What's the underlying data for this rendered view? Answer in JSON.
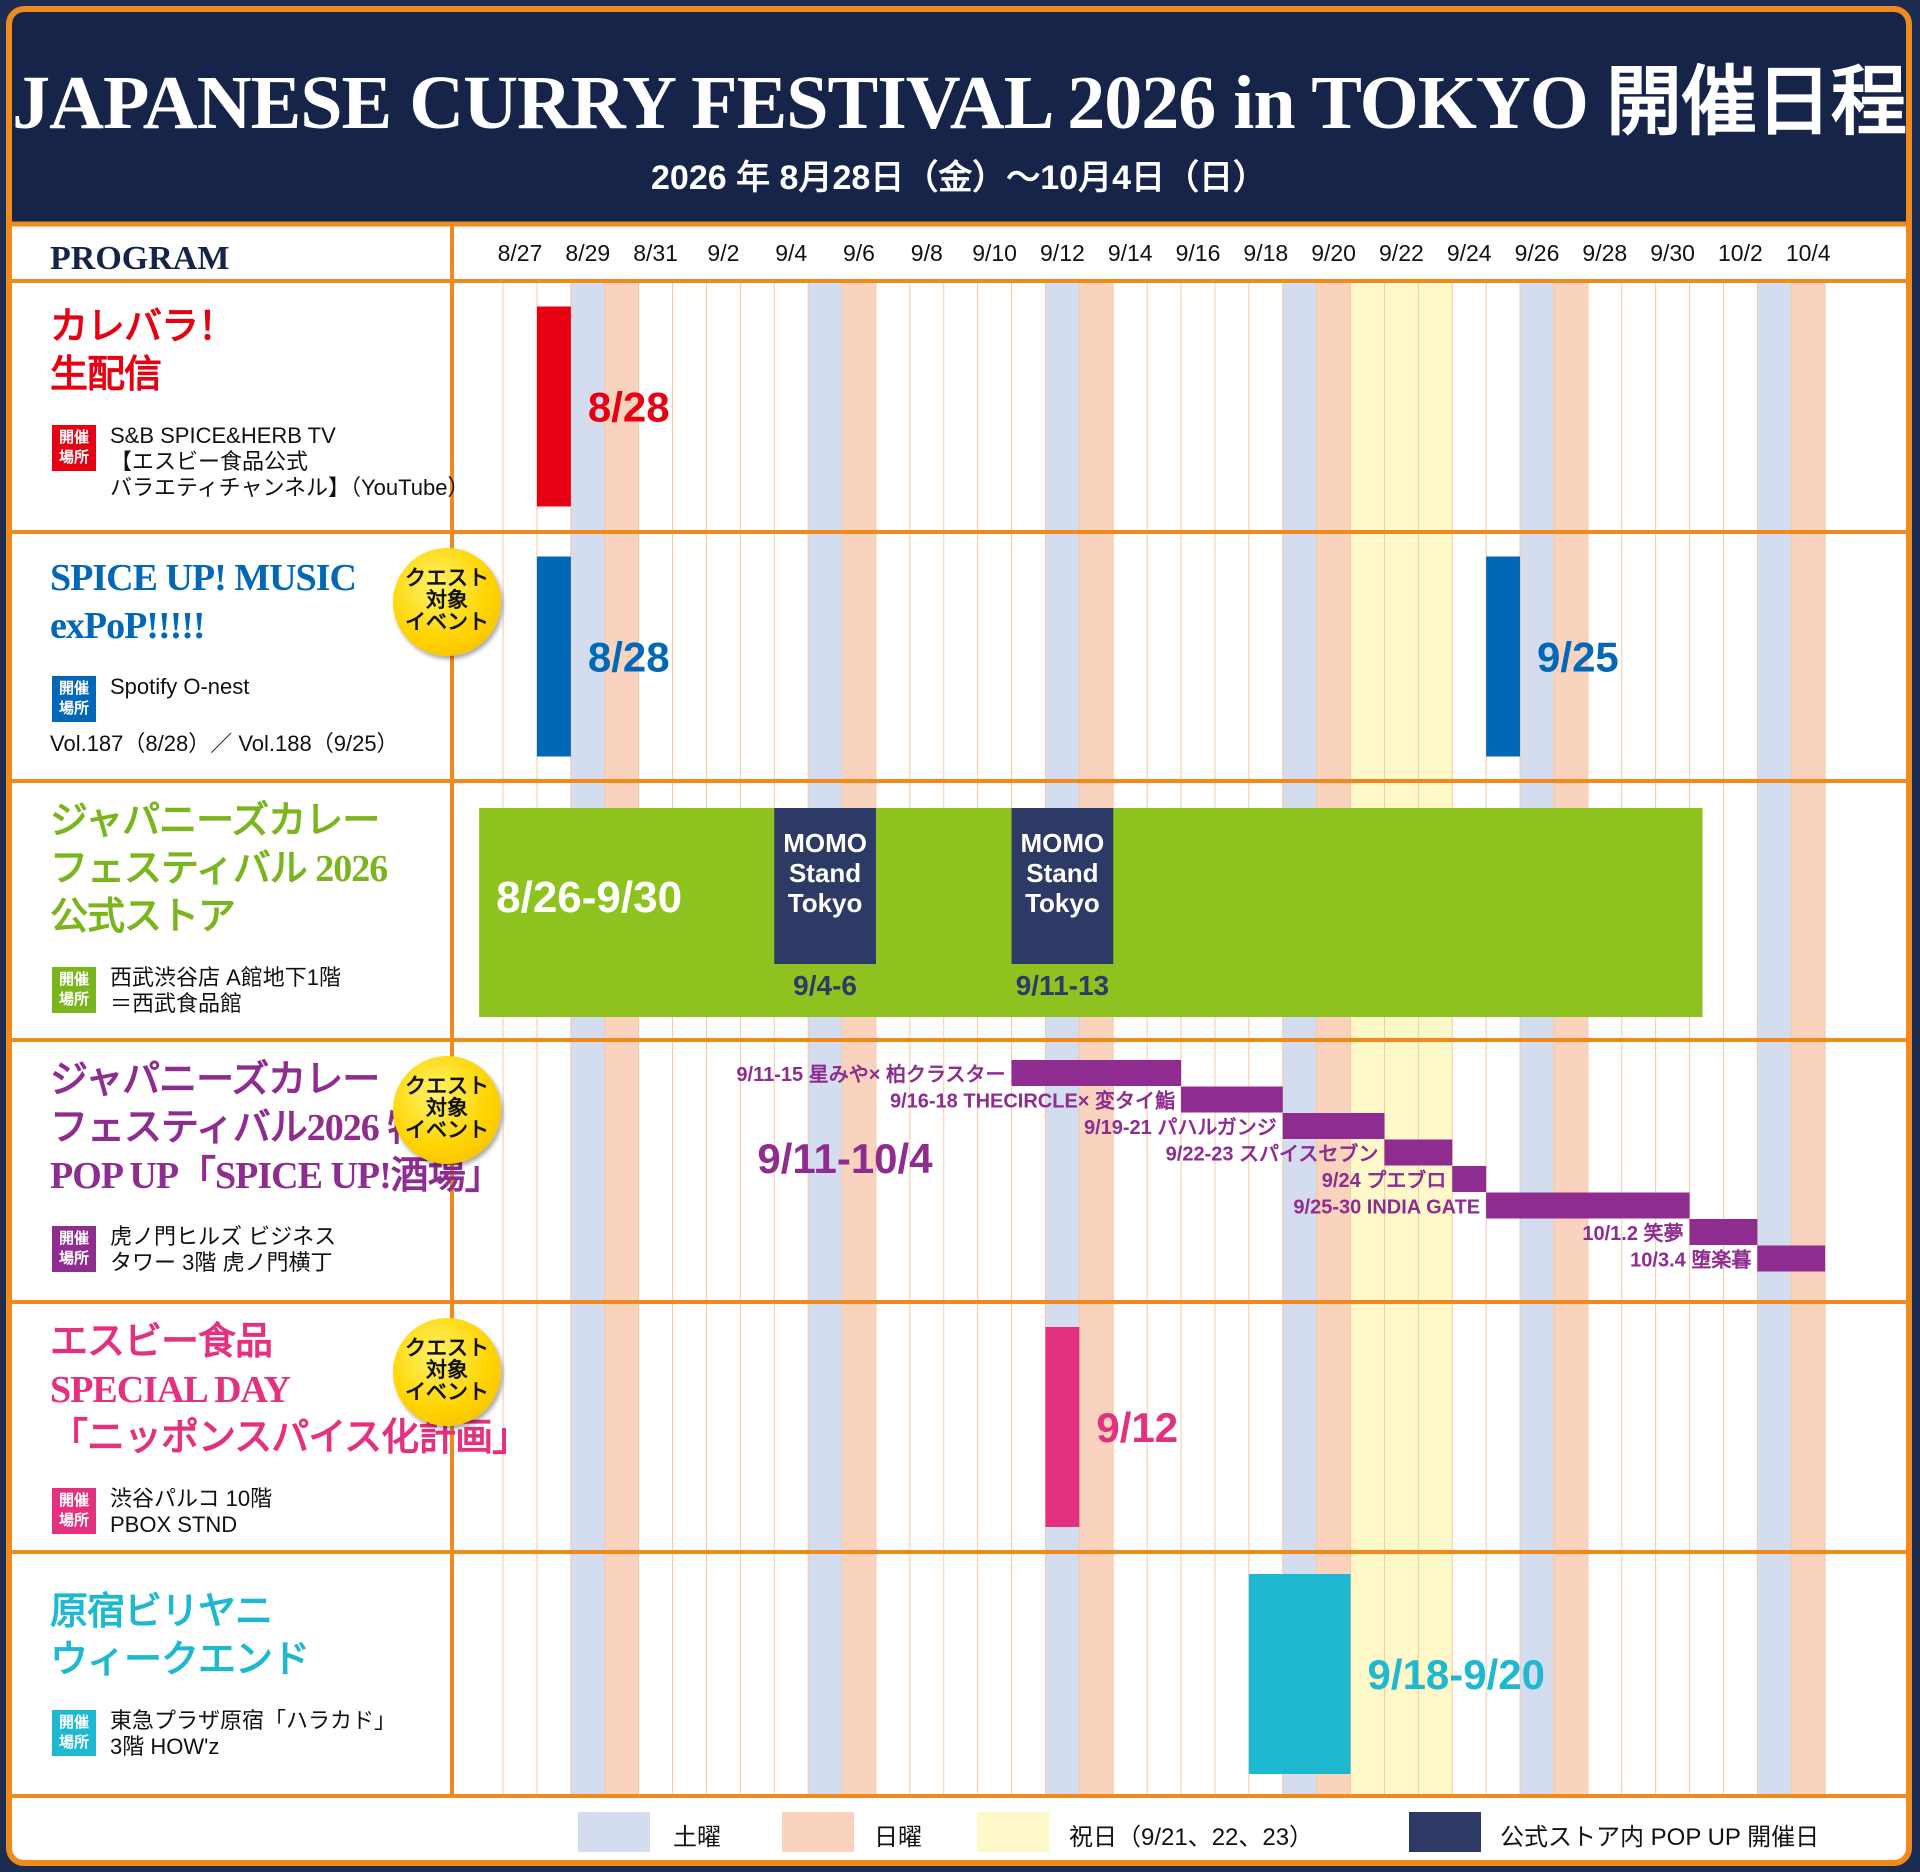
{
  "header": {
    "title": "JAPANESE CURRY FESTIVAL 2026 in TOKYO 開催日程",
    "subtitle": "2026 年 8月28日（金）〜10月4日（日）"
  },
  "program_label": "PROGRAM",
  "venue_tag": [
    "開催",
    "場所"
  ],
  "quest_badge": [
    "クエスト",
    "対象",
    "イベント"
  ],
  "colors": {
    "frame": "#f08a1c",
    "header_bg": "#16244a",
    "saturday": "#d3ddef",
    "sunday": "#f9d3bd",
    "holiday": "#fff8c8",
    "popup": "#2e3a66",
    "red": "#e60012",
    "blue": "#0068b7",
    "green": "#8dc21f",
    "purple": "#8e2c8f",
    "pink": "#e4317f",
    "cyan": "#1eb9d0"
  },
  "rows": [
    {
      "title": [
        "カレバラ！",
        "生配信"
      ],
      "color": "#e60012",
      "venue": [
        "S&B SPICE&HERB TV",
        "【エスビー食品公式",
        "バラエティチャンネル】（YouTube）"
      ],
      "quest": false,
      "vol": ""
    },
    {
      "title": [
        "SPICE UP! MUSIC",
        "exPoP!!!!!"
      ],
      "color": "#0068b7",
      "venue": [
        "Spotify O-nest"
      ],
      "quest": true,
      "vol": "Vol.187（8/28）／ Vol.188（9/25）"
    },
    {
      "title": [
        "ジャパニーズカレー",
        "フェスティバル 2026",
        "公式ストア"
      ],
      "color": "#7ab51d",
      "venue": [
        "西武渋谷店 A館地下1階",
        "＝西武食品館"
      ],
      "quest": false,
      "vol": ""
    },
    {
      "title": [
        "ジャパニーズカレー",
        "フェスティバル2026 特別",
        "POP UP「SPICE UP!酒場」"
      ],
      "color": "#8e2c8f",
      "venue": [
        "虎ノ門ヒルズ ビジネス",
        "タワー 3階 虎ノ門横丁"
      ],
      "quest": true,
      "vol": ""
    },
    {
      "title": [
        "エスビー食品",
        "SPECIAL DAY",
        "「ニッポンスパイス化計画」"
      ],
      "color": "#e4317f",
      "venue": [
        "渋谷パルコ 10階",
        "PBOX STND"
      ],
      "quest": true,
      "vol": ""
    },
    {
      "title": [
        "原宿ビリヤニ",
        "ウィークエンド"
      ],
      "color": "#1eb9d0",
      "venue": [
        "東急プラザ原宿「ハラカド」",
        "3階 HOW'z"
      ],
      "quest": false,
      "vol": ""
    }
  ],
  "chart_data": {
    "type": "gantt",
    "x_axis": {
      "tick_labels": [
        "8/27",
        "8/29",
        "8/31",
        "9/2",
        "9/4",
        "9/6",
        "9/8",
        "9/10",
        "9/12",
        "9/14",
        "9/16",
        "9/18",
        "9/20",
        "9/22",
        "9/24",
        "9/26",
        "9/28",
        "9/30",
        "10/2",
        "10/4"
      ],
      "start": "8/27",
      "end": "10/4"
    },
    "column_shading": {
      "saturday": [
        "8/29",
        "9/5",
        "9/12",
        "9/19",
        "9/26",
        "10/3"
      ],
      "sunday": [
        "8/30",
        "9/6",
        "9/13",
        "9/20",
        "9/27",
        "10/4"
      ],
      "holiday": [
        "9/21",
        "9/22",
        "9/23"
      ]
    },
    "events": [
      {
        "row": 0,
        "start": "8/28",
        "end": "8/28",
        "label": "8/28",
        "color": "#e60012"
      },
      {
        "row": 1,
        "start": "8/28",
        "end": "8/28",
        "label": "8/28",
        "color": "#0068b7"
      },
      {
        "row": 1,
        "start": "9/25",
        "end": "9/25",
        "label": "9/25",
        "color": "#0068b7"
      },
      {
        "row": 2,
        "start": "8/26",
        "end": "9/30",
        "label": "8/26-9/30",
        "color": "#8dc21f"
      },
      {
        "row": 2,
        "start": "9/4",
        "end": "9/6",
        "label": "MOMO Stand Tokyo",
        "sublabel": "9/4-6",
        "color": "#2e3a66"
      },
      {
        "row": 2,
        "start": "9/11",
        "end": "9/13",
        "label": "MOMO Stand Tokyo",
        "sublabel": "9/11-13",
        "color": "#2e3a66"
      },
      {
        "row": 4,
        "start": "9/12",
        "end": "9/12",
        "label": "9/12",
        "color": "#e4317f"
      },
      {
        "row": 5,
        "start": "9/18",
        "end": "9/20",
        "label": "9/18-9/20",
        "color": "#1eb9d0"
      }
    ],
    "popup_overall_label": "9/11-10/4",
    "popup_schedule": [
      {
        "start": "9/11",
        "end": "9/15",
        "label": "9/11-15 星みや× 柏クラスター"
      },
      {
        "start": "9/16",
        "end": "9/18",
        "label": "9/16-18 THECIRCLE× 変タイ鮨"
      },
      {
        "start": "9/19",
        "end": "9/21",
        "label": "9/19-21 パハルガンジ"
      },
      {
        "start": "9/22",
        "end": "9/23",
        "label": "9/22-23 スパイスセブン"
      },
      {
        "start": "9/24",
        "end": "9/24",
        "label": "9/24 プエブロ"
      },
      {
        "start": "9/25",
        "end": "9/30",
        "label": "9/25-30 INDIA GATE"
      },
      {
        "start": "10/1",
        "end": "10/2",
        "label": "10/1.2 笑夢"
      },
      {
        "start": "10/3",
        "end": "10/4",
        "label": "10/3.4 堕楽暮"
      }
    ],
    "legend": [
      {
        "key": "saturday",
        "label": "土曜",
        "color": "#d3ddef"
      },
      {
        "key": "sunday",
        "label": "日曜",
        "color": "#f9d3bd"
      },
      {
        "key": "holiday",
        "label": "祝日（9/21、22、23）",
        "color": "#fff8c8"
      },
      {
        "key": "popup",
        "label": "公式ストア内 POP UP 開催日",
        "color": "#2e3a66"
      }
    ]
  }
}
